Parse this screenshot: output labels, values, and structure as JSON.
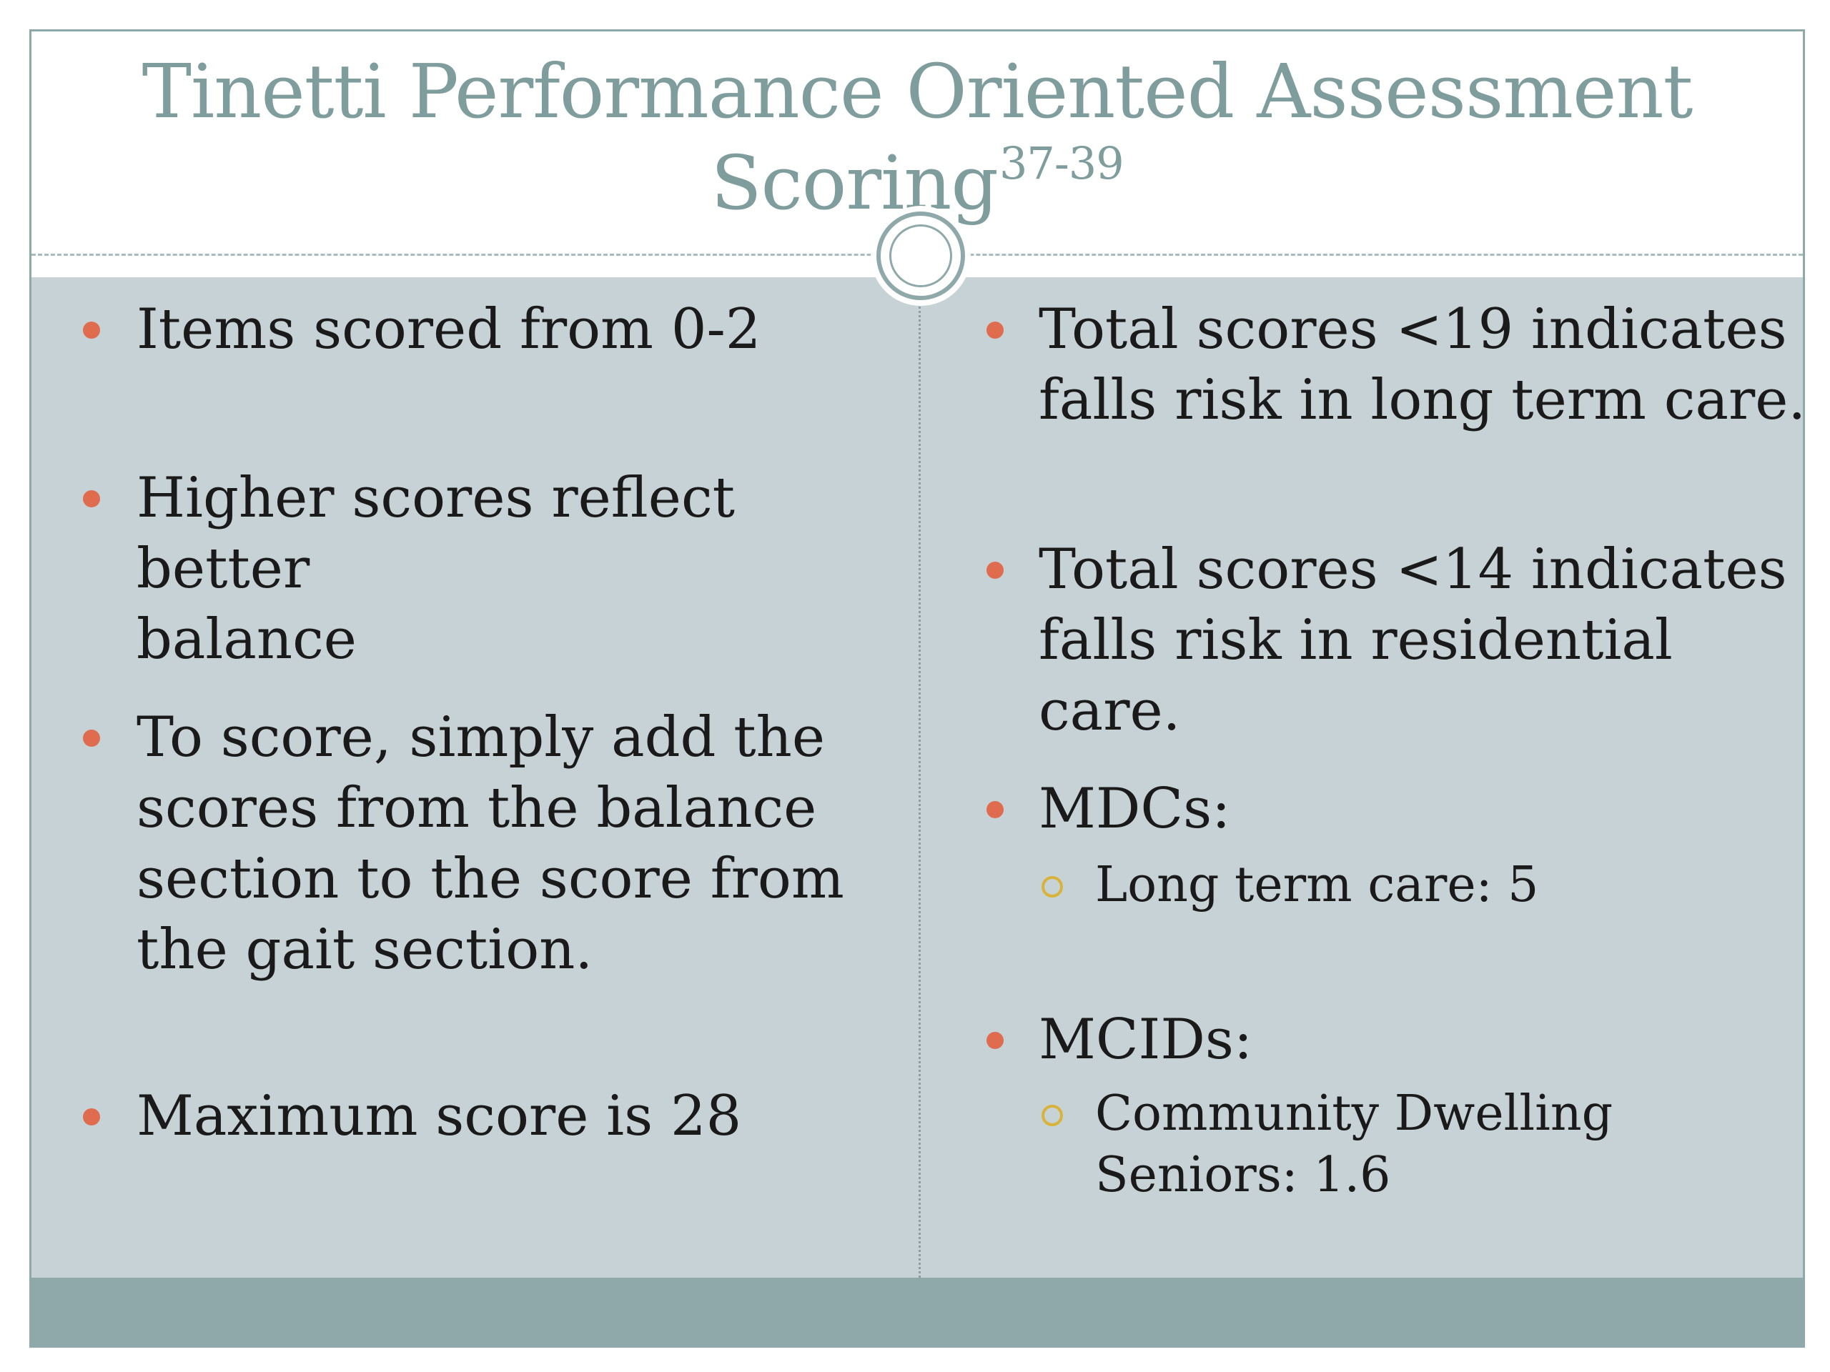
{
  "title": {
    "main": "Tinetti Performance Oriented Assessment",
    "line2": "Scoring",
    "superscript": "37-39"
  },
  "left_column": {
    "bullets": [
      {
        "lines": [
          "Items scored from 0-2"
        ]
      },
      {
        "lines": [
          "Higher scores reflect better",
          "balance"
        ]
      },
      {
        "lines": [
          "To score, simply add the",
          "scores from the balance",
          "section to the score from",
          "the gait section."
        ]
      },
      {
        "lines": [
          "Maximum score is 28"
        ]
      }
    ]
  },
  "right_column": {
    "bullets": [
      {
        "lines": [
          "Total scores <19 indicates",
          "falls risk in long term care."
        ]
      },
      {
        "lines": [
          "Total scores <14 indicates",
          "falls risk in residential care."
        ]
      },
      {
        "lines": [
          "MDCs:"
        ],
        "sub": [
          {
            "lines": [
              "Long term care: 5"
            ]
          }
        ]
      },
      {
        "lines": [
          "MCIDs:"
        ],
        "sub": [
          {
            "lines": [
              "Community Dwelling",
              "Seniors: 1.6"
            ]
          }
        ]
      }
    ]
  },
  "colors": {
    "title": "#7f9d9c",
    "content_background": "#c7d2d7",
    "accent_band": "#8fa9aa",
    "bullet": "#df6c4f",
    "sub_bullet": "#d8b33a"
  },
  "icons": {
    "ornament": "double-ring-ornament",
    "bullet": "filled-circle",
    "sub_bullet": "hollow-circle"
  }
}
